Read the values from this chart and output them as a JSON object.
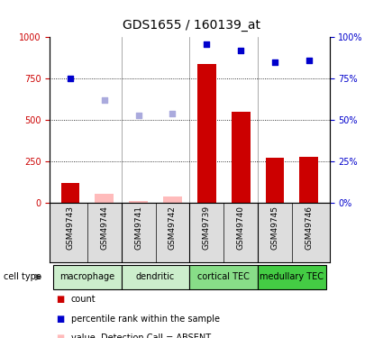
{
  "title": "GDS1655 / 160139_at",
  "samples": [
    "GSM49743",
    "GSM49744",
    "GSM49741",
    "GSM49742",
    "GSM49739",
    "GSM49740",
    "GSM49745",
    "GSM49746"
  ],
  "count_values": [
    120,
    null,
    null,
    null,
    840,
    550,
    270,
    275
  ],
  "count_absent": [
    null,
    55,
    10,
    40,
    null,
    null,
    null,
    null
  ],
  "rank_values": [
    75,
    null,
    null,
    null,
    96,
    92,
    85,
    86
  ],
  "rank_absent": [
    null,
    62,
    53,
    54,
    null,
    null,
    null,
    null
  ],
  "cell_types": [
    {
      "label": "macrophage",
      "span": [
        0,
        2
      ],
      "color": "#cceecc"
    },
    {
      "label": "dendritic",
      "span": [
        2,
        4
      ],
      "color": "#cceecc"
    },
    {
      "label": "cortical TEC",
      "span": [
        4,
        6
      ],
      "color": "#88dd88"
    },
    {
      "label": "medullary TEC",
      "span": [
        6,
        8
      ],
      "color": "#44cc44"
    }
  ],
  "ylim_left": [
    0,
    1000
  ],
  "ylim_right": [
    0,
    100
  ],
  "yticks_left": [
    0,
    250,
    500,
    750,
    1000
  ],
  "yticks_right": [
    0,
    25,
    50,
    75,
    100
  ],
  "bar_color": "#cc0000",
  "bar_absent_color": "#ffbbbb",
  "rank_color": "#0000cc",
  "rank_absent_color": "#aaaadd",
  "background_color": "#ffffff",
  "label_color_left": "#cc0000",
  "label_color_right": "#0000cc",
  "xtick_box_color": "#dddddd",
  "group_separators": [
    1.5,
    3.5,
    5.5
  ]
}
